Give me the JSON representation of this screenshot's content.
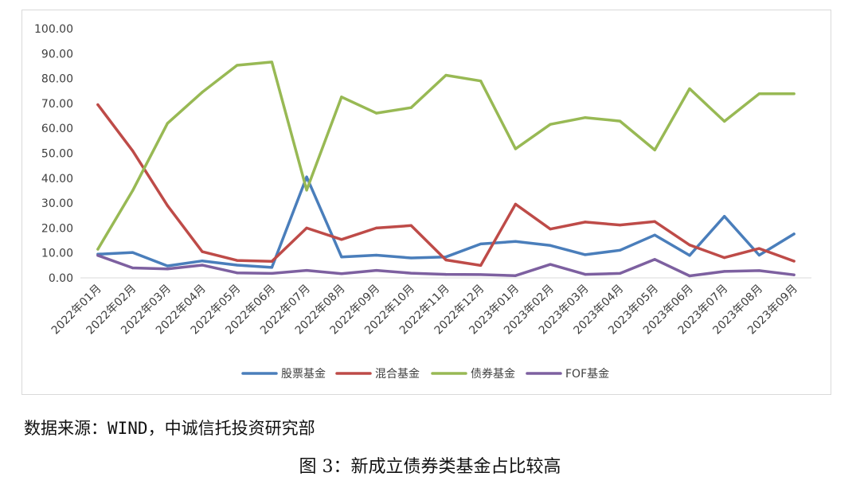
{
  "chart_data": {
    "type": "line",
    "categories": [
      "2022年01月",
      "2022年02月",
      "2022年03月",
      "2022年04月",
      "2022年05月",
      "2022年06月",
      "2022年07月",
      "2022年08月",
      "2022年09月",
      "2022年10月",
      "2022年11月",
      "2022年12月",
      "2023年01月",
      "2023年02月",
      "2023年03月",
      "2023年04月",
      "2023年05月",
      "2023年06月",
      "2023年07月",
      "2023年08月",
      "2023年09月"
    ],
    "series": [
      {
        "name": "股票基金",
        "color": "#4a7ebb",
        "values": [
          9.5,
          10.2,
          4.8,
          6.8,
          5.1,
          4.2,
          40.5,
          8.4,
          9.1,
          8.0,
          8.4,
          13.6,
          14.6,
          13.0,
          9.3,
          11.1,
          17.2,
          9.0,
          24.7,
          9.1,
          17.6
        ]
      },
      {
        "name": "混合基金",
        "color": "#be4b48",
        "values": [
          69.5,
          51.0,
          29.0,
          10.5,
          7.0,
          6.6,
          20.0,
          15.4,
          20.0,
          21.0,
          7.2,
          5.0,
          29.6,
          19.6,
          22.4,
          21.2,
          22.6,
          13.2,
          8.1,
          11.8,
          6.7
        ]
      },
      {
        "name": "债券基金",
        "color": "#98b954",
        "values": [
          11.5,
          35.0,
          62.0,
          74.5,
          85.3,
          86.6,
          35.2,
          72.6,
          66.1,
          68.3,
          81.3,
          79.0,
          51.8,
          61.6,
          64.3,
          62.9,
          51.3,
          75.9,
          62.8,
          73.9,
          73.9
        ]
      },
      {
        "name": "FOF基金",
        "color": "#7d60a0",
        "values": [
          9.0,
          4.0,
          3.6,
          5.1,
          2.0,
          1.8,
          3.0,
          1.7,
          3.0,
          1.9,
          1.4,
          1.3,
          0.9,
          5.4,
          1.4,
          1.8,
          7.4,
          0.8,
          2.6,
          2.9,
          1.2
        ]
      }
    ],
    "yticks": [
      "100.00",
      "90.00",
      "80.00",
      "70.00",
      "60.00",
      "50.00",
      "40.00",
      "30.00",
      "20.00",
      "10.00",
      "0.00"
    ],
    "ylim": [
      0,
      100
    ],
    "grid": false,
    "legend_position": "bottom"
  },
  "source_text": "数据来源：WIND，中诚信托投资研究部",
  "caption": "图 3：新成立债券类基金占比较高"
}
